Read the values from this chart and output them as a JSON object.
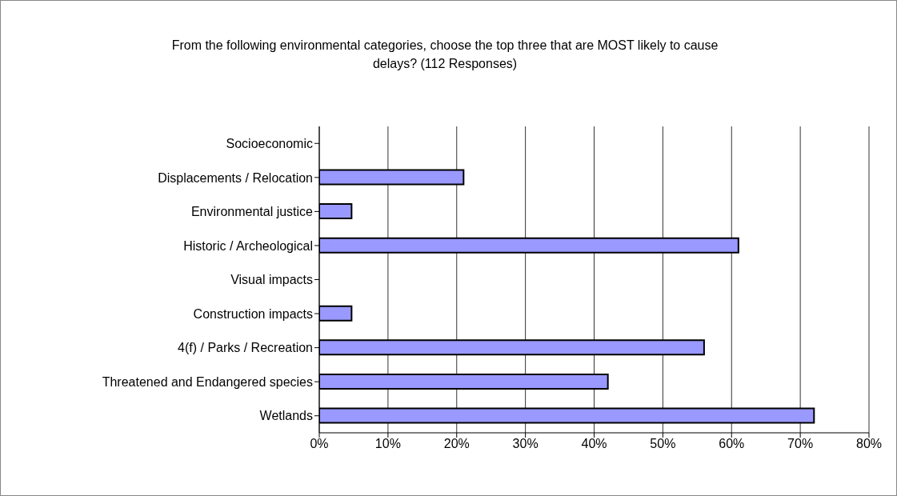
{
  "chart_data": {
    "type": "bar",
    "orientation": "horizontal",
    "title": "From the following environmental categories, choose the top three that are MOST likely to cause delays? (112 Responses)",
    "categories": [
      "Socioeconomic",
      "Displacements / Relocation",
      "Environmental justice",
      "Historic / Archeological",
      "Visual impacts",
      "Construction impacts",
      "4(f) / Parks / Recreation",
      "Threatened and Endangered species",
      "Wetlands"
    ],
    "values": [
      0,
      21,
      4.7,
      61,
      0,
      4.7,
      56,
      42,
      72
    ],
    "color": "#9999ff",
    "xlim": [
      0,
      80
    ],
    "xticks": [
      {
        "value": 0,
        "label": "0%"
      },
      {
        "value": 10,
        "label": "10%"
      },
      {
        "value": 20,
        "label": "20%"
      },
      {
        "value": 30,
        "label": "30%"
      },
      {
        "value": 40,
        "label": "40%"
      },
      {
        "value": 50,
        "label": "50%"
      },
      {
        "value": 60,
        "label": "60%"
      },
      {
        "value": 70,
        "label": "70%"
      },
      {
        "value": 80,
        "label": "80%"
      }
    ],
    "grid": "x",
    "legend": false
  }
}
